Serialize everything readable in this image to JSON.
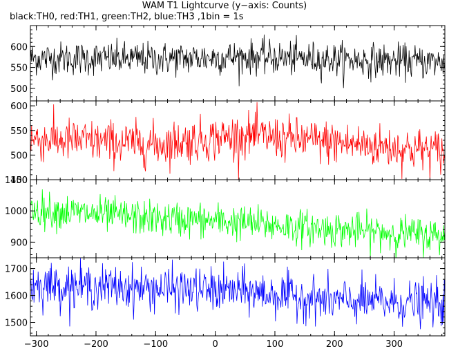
{
  "title": "WAM T1 Lightcurve (y−axis: Counts)",
  "subtitle": "black:TH0, red:TH1, green:TH2, blue:TH3 ,1bin = 1s",
  "chart_data": {
    "type": "line",
    "xlim": [
      -310,
      385
    ],
    "x_ticks": [
      -300,
      -200,
      -100,
      0,
      100,
      200,
      300
    ],
    "x_tick_labels": [
      "−300",
      "−200",
      "−100",
      "0",
      "100",
      "200",
      "300"
    ],
    "xlabel": "",
    "panels": [
      {
        "name": "TH0",
        "color": "#000000",
        "ylim": [
          470,
          650
        ],
        "y_ticks": [
          500,
          550,
          600
        ],
        "y_tick_labels": [
          "500",
          "550",
          "600"
        ],
        "trend": [
          [
            -310,
            572
          ],
          [
            -100,
            570
          ],
          [
            50,
            575
          ],
          [
            385,
            562
          ]
        ],
        "noise_sd": 20
      },
      {
        "name": "TH1",
        "color": "#ff0000",
        "ylim": [
          450,
          610
        ],
        "y_ticks": [
          450,
          500,
          550,
          600
        ],
        "y_tick_labels": [
          "450",
          "500",
          "550",
          "600"
        ],
        "trend": [
          [
            -310,
            533
          ],
          [
            -100,
            522
          ],
          [
            50,
            540
          ],
          [
            385,
            507
          ]
        ],
        "noise_sd": 22
      },
      {
        "name": "TH2",
        "color": "#00ff00",
        "ylim": [
          850,
          1100
        ],
        "y_ticks": [
          900,
          1000,
          1100
        ],
        "y_tick_labels": [
          "900",
          "1000",
          "1100"
        ],
        "trend": [
          [
            -310,
            1005
          ],
          [
            -100,
            975
          ],
          [
            0,
            968
          ],
          [
            200,
            940
          ],
          [
            385,
            920
          ]
        ],
        "noise_sd": 28
      },
      {
        "name": "TH3",
        "color": "#0000ff",
        "ylim": [
          1450,
          1740
        ],
        "y_ticks": [
          1500,
          1600,
          1700
        ],
        "y_tick_labels": [
          "1500",
          "1600",
          "1700"
        ],
        "trend": [
          [
            -310,
            1640
          ],
          [
            -100,
            1625
          ],
          [
            50,
            1615
          ],
          [
            200,
            1580
          ],
          [
            385,
            1570
          ]
        ],
        "noise_sd": 40
      }
    ]
  }
}
